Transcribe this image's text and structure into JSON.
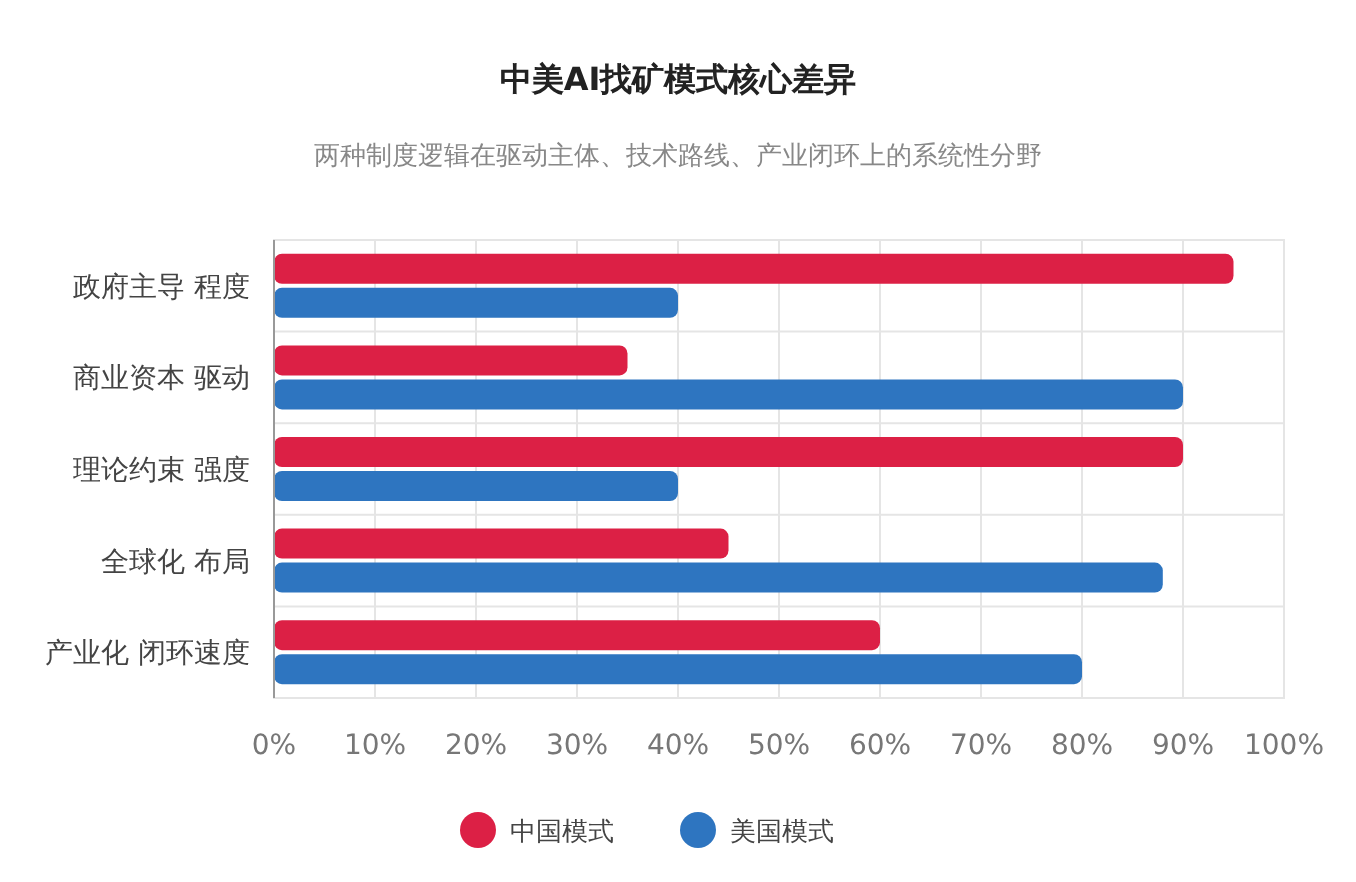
{
  "chart_data": {
    "type": "bar",
    "orientation": "horizontal",
    "title": "中美AI找矿模式核心差异",
    "subtitle": "两种制度逻辑在驱动主体、技术路线、产业闭环上的系统性分野",
    "categories": [
      "政府主导 程度",
      "商业资本 驱动",
      "理论约束 强度",
      "全球化 布局",
      "产业化 闭环速度"
    ],
    "series": [
      {
        "name": "中国模式",
        "color": "#dc2045",
        "values": [
          95,
          35,
          90,
          45,
          60
        ]
      },
      {
        "name": "美国模式",
        "color": "#2e75c0",
        "values": [
          40,
          90,
          40,
          88,
          80
        ]
      }
    ],
    "xlim": [
      0,
      100
    ],
    "xticks": [
      {
        "value": 0,
        "label": "0%"
      },
      {
        "value": 10,
        "label": "10%"
      },
      {
        "value": 20,
        "label": "20%"
      },
      {
        "value": 30,
        "label": "30%"
      },
      {
        "value": 40,
        "label": "40%"
      },
      {
        "value": 50,
        "label": "50%"
      },
      {
        "value": 60,
        "label": "60%"
      },
      {
        "value": 70,
        "label": "70%"
      },
      {
        "value": 80,
        "label": "80%"
      },
      {
        "value": 90,
        "label": "90%"
      },
      {
        "value": 100,
        "label": "100%"
      }
    ],
    "grid": true,
    "legend": "bottom"
  }
}
